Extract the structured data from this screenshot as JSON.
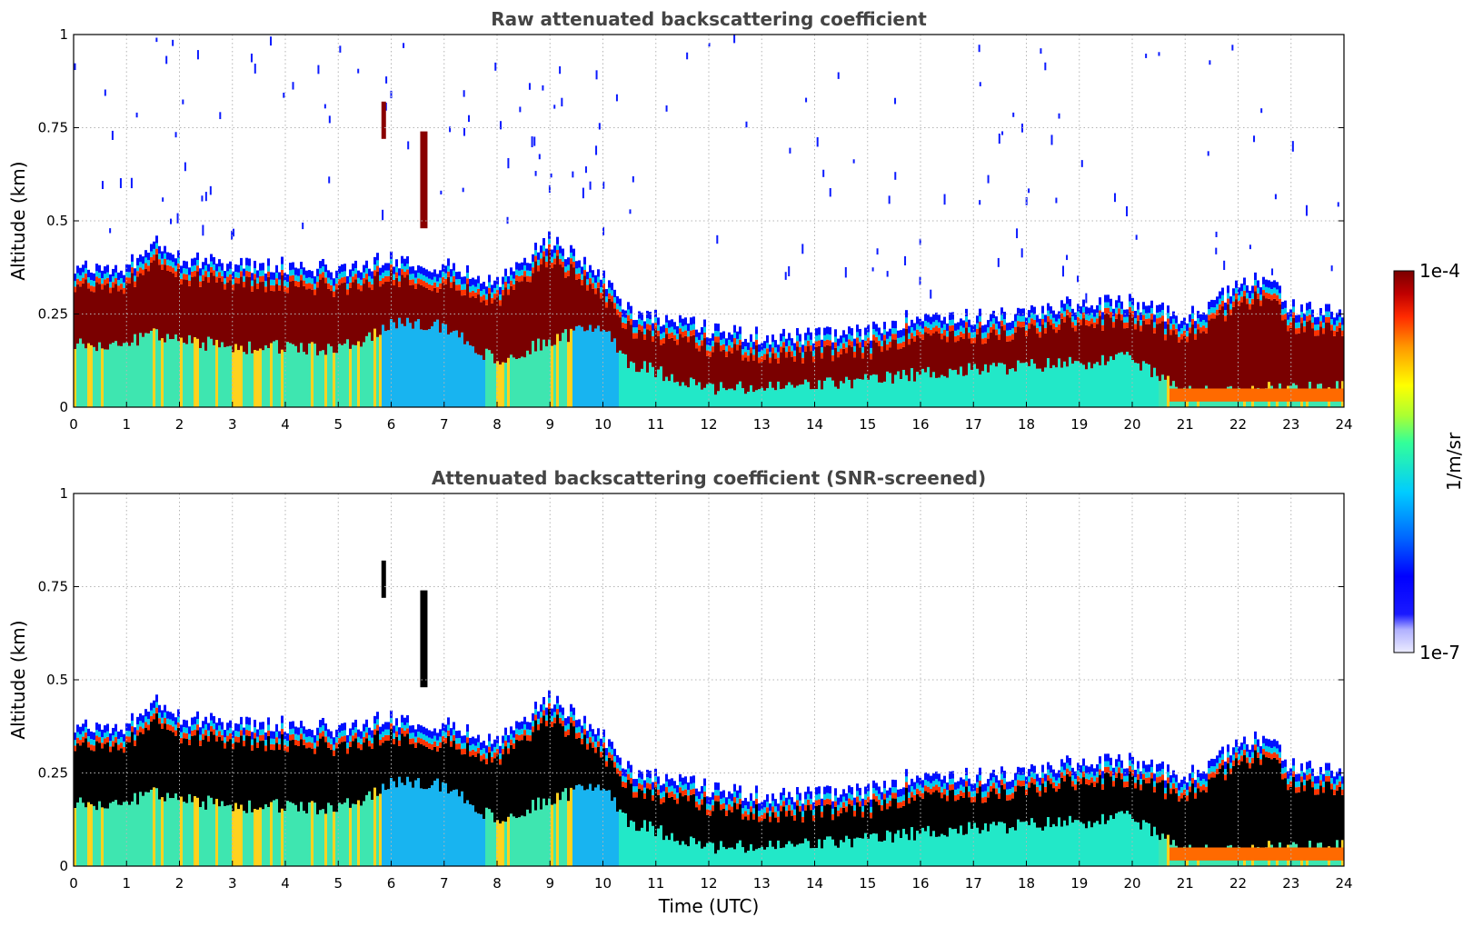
{
  "chart_data": [
    {
      "type": "heatmap",
      "title": "Raw attenuated backscattering coefficient",
      "xlabel": "",
      "ylabel": "Altitude (km)",
      "xlim": [
        0,
        24
      ],
      "ylim": [
        0,
        1
      ],
      "xticks": [
        "0",
        "1",
        "2",
        "3",
        "4",
        "5",
        "6",
        "7",
        "8",
        "9",
        "10",
        "11",
        "12",
        "13",
        "14",
        "15",
        "16",
        "17",
        "18",
        "19",
        "20",
        "21",
        "22",
        "23",
        "24"
      ],
      "yticks": [
        "0",
        "0.25",
        "0.5",
        "0.75",
        "1"
      ],
      "grid": true,
      "screened": false,
      "layer_top_km": {
        "x_utc": [
          0,
          1,
          1.5,
          2,
          3,
          4,
          5,
          6,
          7,
          8,
          9,
          10,
          10.5,
          12,
          13,
          14,
          15,
          16,
          17,
          18,
          19,
          20,
          21,
          22,
          22.5,
          23,
          24
        ],
        "top": [
          0.37,
          0.37,
          0.45,
          0.4,
          0.38,
          0.38,
          0.37,
          0.4,
          0.38,
          0.33,
          0.45,
          0.35,
          0.26,
          0.21,
          0.19,
          0.19,
          0.2,
          0.25,
          0.24,
          0.25,
          0.28,
          0.28,
          0.24,
          0.32,
          0.35,
          0.27,
          0.25
        ],
        "core_bottom": [
          0.17,
          0.17,
          0.2,
          0.18,
          0.16,
          0.16,
          0.15,
          0.22,
          0.22,
          0.12,
          0.18,
          0.22,
          0.12,
          0.05,
          0.05,
          0.06,
          0.07,
          0.09,
          0.1,
          0.11,
          0.12,
          0.13,
          0.04,
          0.05,
          0.05,
          0.05,
          0.05
        ]
      }
    },
    {
      "type": "heatmap",
      "title": "Attenuated backscattering coefficient (SNR-screened)",
      "xlabel": "Time (UTC)",
      "ylabel": "Altitude (km)",
      "xlim": [
        0,
        24
      ],
      "ylim": [
        0,
        1
      ],
      "xticks": [
        "0",
        "1",
        "2",
        "3",
        "4",
        "5",
        "6",
        "7",
        "8",
        "9",
        "10",
        "11",
        "12",
        "13",
        "14",
        "15",
        "16",
        "17",
        "18",
        "19",
        "20",
        "21",
        "22",
        "23",
        "24"
      ],
      "yticks": [
        "0",
        "0.25",
        "0.5",
        "0.75",
        "1"
      ],
      "grid": true,
      "screened": true,
      "layer_top_km": {
        "x_utc": [
          0,
          1,
          1.5,
          2,
          3,
          4,
          5,
          6,
          7,
          8,
          9,
          10,
          10.5,
          12,
          13,
          14,
          15,
          16,
          17,
          18,
          19,
          20,
          21,
          22,
          22.5,
          23,
          24
        ],
        "top": [
          0.37,
          0.37,
          0.45,
          0.4,
          0.38,
          0.38,
          0.37,
          0.4,
          0.38,
          0.33,
          0.45,
          0.35,
          0.26,
          0.21,
          0.19,
          0.19,
          0.2,
          0.25,
          0.24,
          0.25,
          0.28,
          0.28,
          0.24,
          0.32,
          0.35,
          0.27,
          0.25
        ],
        "core_bottom": [
          0.17,
          0.17,
          0.2,
          0.18,
          0.16,
          0.16,
          0.15,
          0.22,
          0.22,
          0.12,
          0.18,
          0.22,
          0.12,
          0.05,
          0.05,
          0.06,
          0.07,
          0.09,
          0.1,
          0.11,
          0.12,
          0.13,
          0.04,
          0.05,
          0.05,
          0.05,
          0.05
        ]
      }
    }
  ],
  "colorbar": {
    "label": "1/m/sr",
    "max_label": "1e-4",
    "min_label": "1e-7",
    "scale": "log",
    "colors": [
      "#eeeeff",
      "#0000ff",
      "#00ccff",
      "#ffff00",
      "#ff6600",
      "#7a0000"
    ]
  },
  "colors": {
    "low": "#0000ff",
    "mid": "#00e5e5",
    "high": "#800000",
    "screened_core": "#000000"
  }
}
